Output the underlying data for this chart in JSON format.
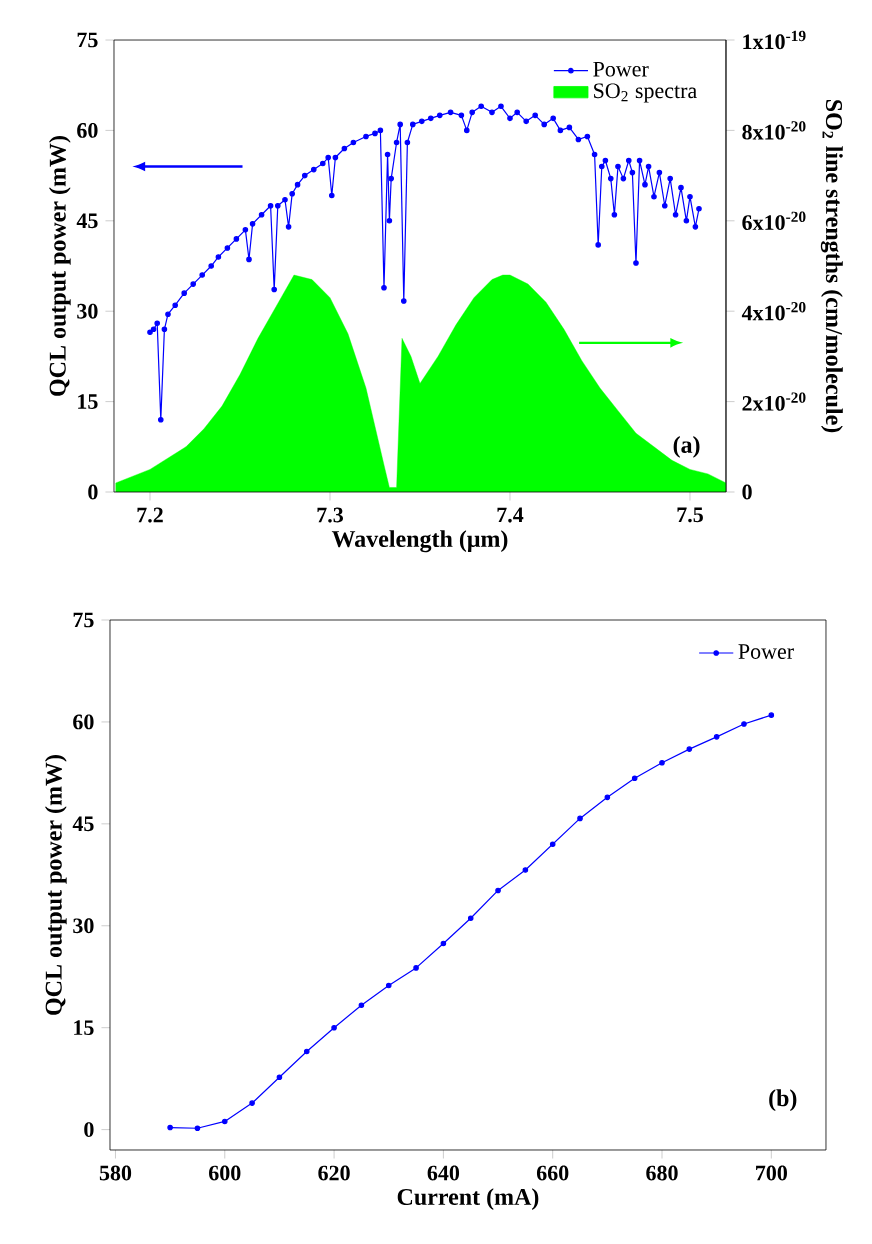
{
  "chart_data": [
    {
      "type": "line",
      "xlabel": "Wavelength (μm)",
      "ylabel": "QCL output power (mW)",
      "y2label": "SO$_{2}$ line strengths (cm/molecule)",
      "xlim": [
        7.18,
        7.52
      ],
      "xticks": [
        7.2,
        7.3,
        7.4,
        7.5
      ],
      "ylim": [
        0,
        75
      ],
      "yticks": [
        0,
        15,
        30,
        45,
        60,
        75
      ],
      "y2lim": [
        0,
        1e-19
      ],
      "y2ticks": [
        0,
        {
          "value": 2e-20,
          "label": "2x10$^{-20}$"
        },
        {
          "value": 4e-20,
          "label": "4x10$^{-20}$"
        },
        {
          "value": 6e-20,
          "label": "6x10$^{-20}$"
        },
        {
          "value": 8e-20,
          "label": "8x10$^{-20}$"
        },
        {
          "value": 1e-19,
          "label": "1x10$^{-19}$"
        }
      ],
      "legend": "top right",
      "annotations": [
        "(a)"
      ],
      "series": [
        {
          "name": "Power",
          "color": "#0000ff",
          "marker": "circle",
          "x": [
            7.2,
            7.202,
            7.204,
            7.206,
            7.208,
            7.21,
            7.214,
            7.219,
            7.224,
            7.229,
            7.234,
            7.238,
            7.243,
            7.248,
            7.253,
            7.255,
            7.257,
            7.262,
            7.267,
            7.269,
            7.271,
            7.275,
            7.277,
            7.279,
            7.282,
            7.286,
            7.291,
            7.296,
            7.299,
            7.301,
            7.303,
            7.308,
            7.313,
            7.32,
            7.325,
            7.328,
            7.33,
            7.332,
            7.333,
            7.334,
            7.337,
            7.339,
            7.341,
            7.343,
            7.346,
            7.351,
            7.356,
            7.361,
            7.367,
            7.373,
            7.376,
            7.379,
            7.384,
            7.39,
            7.395,
            7.4,
            7.404,
            7.409,
            7.414,
            7.419,
            7.424,
            7.428,
            7.433,
            7.438,
            7.443,
            7.447,
            7.449,
            7.451,
            7.453,
            7.456,
            7.458,
            7.46,
            7.463,
            7.466,
            7.468,
            7.47,
            7.472,
            7.475,
            7.477,
            7.48,
            7.483,
            7.486,
            7.489,
            7.492,
            7.495,
            7.498,
            7.5,
            7.503,
            7.505
          ],
          "values": [
            26.5,
            27,
            28,
            12,
            27,
            29.5,
            31,
            33,
            34.5,
            36,
            37.5,
            39,
            40.5,
            42,
            43.5,
            38.6,
            44.5,
            46,
            47.5,
            33.6,
            47.5,
            48.5,
            44,
            49.5,
            51,
            52.5,
            53.5,
            54.5,
            55.5,
            49.2,
            55.5,
            57,
            58,
            59,
            59.5,
            60,
            33.9,
            56,
            45,
            52,
            58,
            61,
            31.7,
            58,
            61,
            61.5,
            62,
            62.5,
            63,
            62.5,
            60,
            63,
            64,
            63,
            64,
            62,
            63,
            61.5,
            62.5,
            61,
            62,
            60,
            60.5,
            58.5,
            59,
            56,
            41,
            54,
            55,
            52,
            46,
            54,
            52,
            55,
            53,
            38,
            55,
            51,
            54,
            49,
            53,
            47.5,
            52,
            46,
            50.5,
            45,
            49,
            44,
            47
          ]
        },
        {
          "name": "SO$_{2}$ spectra",
          "type": "area",
          "axis": "y2",
          "color": "#00ff00",
          "x": [
            7.181,
            7.2,
            7.22,
            7.23,
            7.24,
            7.25,
            7.26,
            7.27,
            7.28,
            7.29,
            7.3,
            7.31,
            7.32,
            7.33,
            7.333,
            7.337,
            7.34,
            7.345,
            7.35,
            7.36,
            7.37,
            7.38,
            7.39,
            7.396,
            7.4,
            7.41,
            7.42,
            7.43,
            7.44,
            7.45,
            7.46,
            7.47,
            7.48,
            7.49,
            7.5,
            7.51,
            7.52
          ],
          "values": [
            2e-21,
            5e-21,
            1e-20,
            1.4e-20,
            1.9e-20,
            2.6e-20,
            3.4e-20,
            4.1e-20,
            4.8e-20,
            4.7e-20,
            4.3e-20,
            3.5e-20,
            2.3e-20,
            6e-21,
            1e-21,
            1e-21,
            3.4e-20,
            3e-20,
            2.4e-20,
            3e-20,
            3.7e-20,
            4.3e-20,
            4.7e-20,
            4.8e-20,
            4.8e-20,
            4.6e-20,
            4.2e-20,
            3.6e-20,
            2.9e-20,
            2.3e-20,
            1.8e-20,
            1.3e-20,
            1e-20,
            7e-21,
            5e-21,
            4e-21,
            2e-21
          ]
        }
      ]
    },
    {
      "type": "line",
      "xlabel": "Current (mA)",
      "ylabel": "QCL output power (mW)",
      "xlim": [
        579,
        710
      ],
      "xticks": [
        580,
        600,
        620,
        640,
        660,
        680,
        700
      ],
      "ylim": [
        -3,
        75
      ],
      "yticks": [
        0,
        15,
        30,
        45,
        60,
        75
      ],
      "legend": "top right",
      "annotations": [
        "(b)"
      ],
      "series": [
        {
          "name": "Power",
          "color": "#0000ff",
          "marker": "circle",
          "x": [
            590,
            595,
            600,
            605,
            610,
            615,
            620,
            625,
            630,
            635,
            640,
            645,
            650,
            655,
            660,
            665,
            670,
            675,
            680,
            685,
            690,
            695,
            700
          ],
          "values": [
            0.3,
            0.2,
            1.2,
            3.9,
            7.7,
            11.5,
            15,
            18.3,
            21.2,
            23.8,
            27.4,
            31.1,
            35.2,
            38.2,
            42,
            45.8,
            48.9,
            51.7,
            54,
            56,
            57.8,
            59.7,
            61
          ]
        }
      ]
    }
  ]
}
